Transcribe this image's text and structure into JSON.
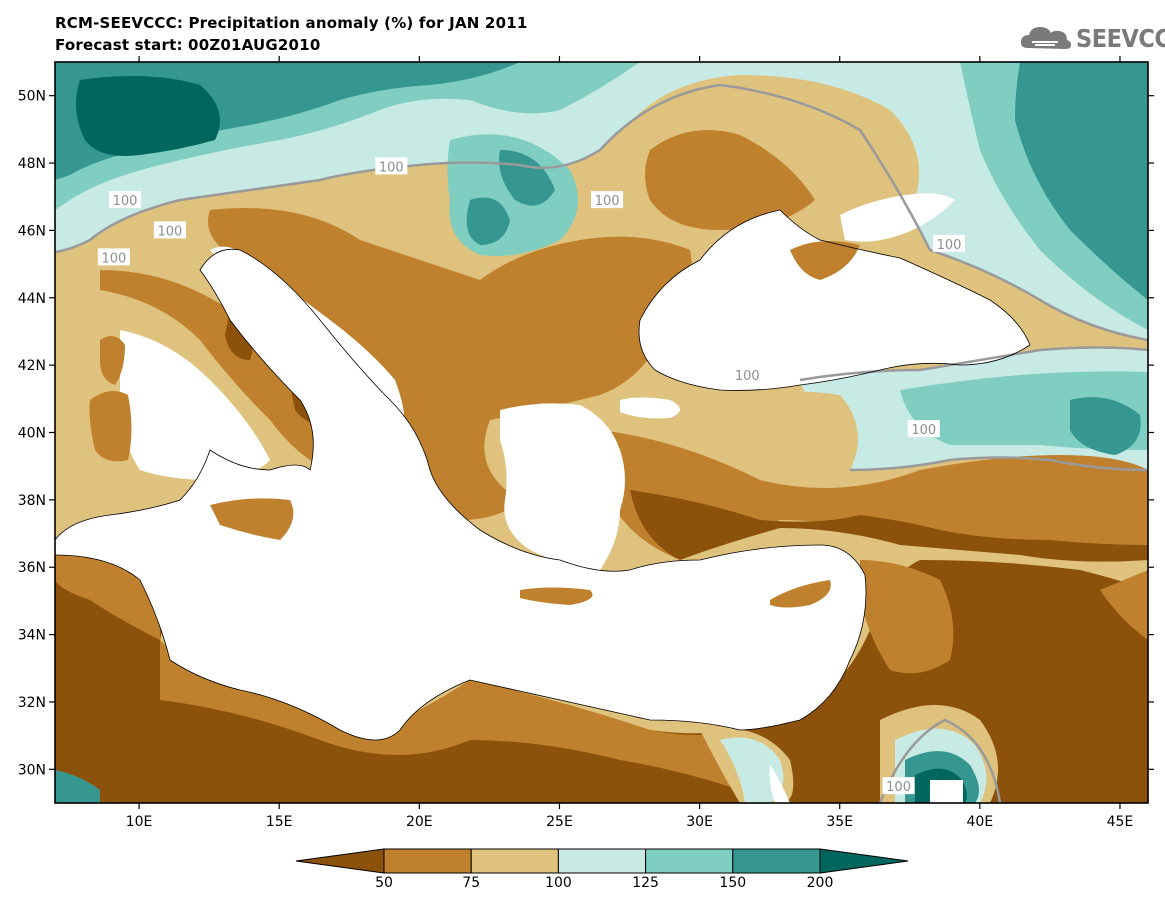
{
  "title": "RCM-SEEVCCC: Precipitation anomaly (%) for JAN 2011",
  "subtitle": "Forecast start: 00Z01AUG2010",
  "logo": {
    "text": "SEEVCCC",
    "icon": "cloud-logo-icon"
  },
  "map": {
    "lon_range": [
      7,
      46
    ],
    "lat_range": [
      29,
      51
    ],
    "lat_ticks": [
      {
        "value": 50,
        "label": "50N"
      },
      {
        "value": 48,
        "label": "48N"
      },
      {
        "value": 46,
        "label": "46N"
      },
      {
        "value": 44,
        "label": "44N"
      },
      {
        "value": 42,
        "label": "42N"
      },
      {
        "value": 40,
        "label": "40N"
      },
      {
        "value": 38,
        "label": "38N"
      },
      {
        "value": 36,
        "label": "36N"
      },
      {
        "value": 34,
        "label": "34N"
      },
      {
        "value": 32,
        "label": "32N"
      },
      {
        "value": 30,
        "label": "30N"
      }
    ],
    "lon_ticks": [
      {
        "value": 10,
        "label": "10E"
      },
      {
        "value": 15,
        "label": "15E"
      },
      {
        "value": 20,
        "label": "20E"
      },
      {
        "value": 25,
        "label": "25E"
      },
      {
        "value": 30,
        "label": "30E"
      },
      {
        "value": 35,
        "label": "35E"
      },
      {
        "value": 40,
        "label": "40E"
      },
      {
        "value": 45,
        "label": "45E"
      }
    ],
    "contour_labels": [
      {
        "text": "100",
        "lon": 19.0,
        "lat": 47.9
      },
      {
        "text": "100",
        "lon": 9.5,
        "lat": 46.9
      },
      {
        "text": "100",
        "lon": 11.1,
        "lat": 46.0
      },
      {
        "text": "100",
        "lon": 9.1,
        "lat": 45.2
      },
      {
        "text": "100",
        "lon": 26.7,
        "lat": 46.9
      },
      {
        "text": "100",
        "lon": 38.9,
        "lat": 45.6
      },
      {
        "text": "100",
        "lon": 31.7,
        "lat": 41.7
      },
      {
        "text": "100",
        "lon": 38.0,
        "lat": 40.1
      },
      {
        "text": "100",
        "lon": 37.1,
        "lat": 29.5
      }
    ],
    "colors": {
      "lt50": "#8c510a",
      "50_75": "#bf812d",
      "75_100": "#dfc27d",
      "100_125": "#c7eae5",
      "125_150": "#80cdc1",
      "150_200": "#35978f",
      "gt200": "#01665e",
      "contour": "#9a9a9a",
      "sea": "#ffffff"
    }
  },
  "colorbar": {
    "labels": [
      "50",
      "75",
      "100",
      "125",
      "150",
      "200"
    ],
    "colors": [
      "#8c510a",
      "#bf812d",
      "#dfc27d",
      "#c7eae5",
      "#80cdc1",
      "#35978f",
      "#01665e"
    ]
  }
}
